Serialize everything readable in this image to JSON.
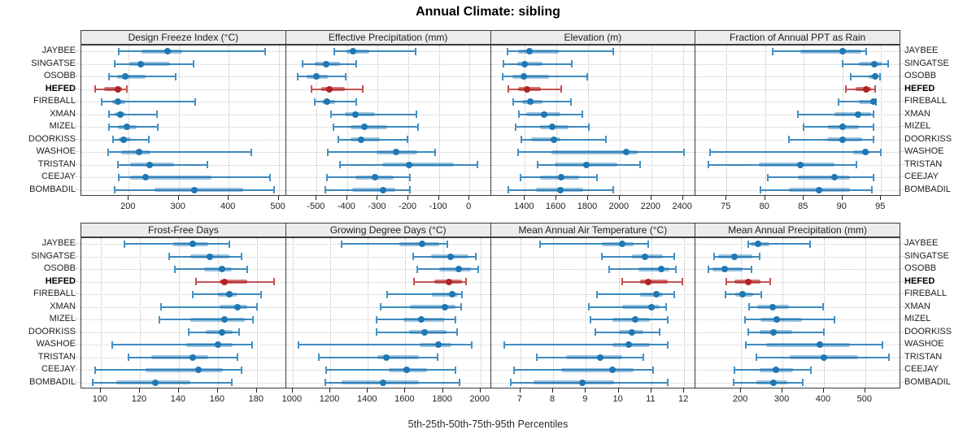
{
  "title": "Annual Climate: sibling",
  "caption": "5th-25th-50th-75th-95th Percentiles",
  "stations": [
    "JAYBEE",
    "SINGATSE",
    "OSOBB",
    "HEFED",
    "FIREBALL",
    "XMAN",
    "MIZEL",
    "DOORKISS",
    "WASHOE",
    "TRISTAN",
    "CEEJAY",
    "BOMBADIL"
  ],
  "highlight_station": "HEFED",
  "colors": {
    "series": "#1f77b4",
    "series_line": "#4292c6",
    "highlight": "#b22222",
    "highlight_line": "#c4524e",
    "panel_header_bg": "#ececec",
    "panel_border": "#3c3c3c",
    "grid": "#c9c9c9"
  },
  "chart_data": {
    "type": "dotplot-percentiles",
    "percentile_levels": [
      5,
      25,
      50,
      75,
      95
    ],
    "legend_note": "values per station are [p5, p25, p50, p75, p95]",
    "panels": [
      {
        "title": "Design Freeze Index (°C)",
        "grid_row": 1,
        "xlim": [
          105,
          515
        ],
        "ticks": [
          200,
          300,
          400,
          500
        ],
        "values": [
          [
            180,
            226,
            278,
            307,
            473
          ],
          [
            172,
            201,
            224,
            283,
            330
          ],
          [
            161,
            177,
            193,
            234,
            294
          ],
          [
            132,
            150,
            178,
            186,
            196
          ],
          [
            146,
            167,
            179,
            193,
            333
          ],
          [
            161,
            171,
            183,
            193,
            257
          ],
          [
            161,
            179,
            197,
            215,
            258
          ],
          [
            169,
            180,
            189,
            205,
            240
          ],
          [
            159,
            185,
            221,
            244,
            445
          ],
          [
            179,
            203,
            242,
            291,
            358
          ],
          [
            180,
            202,
            234,
            366,
            483
          ],
          [
            172,
            252,
            332,
            429,
            491
          ]
        ]
      },
      {
        "title": "Effective Precipitation (mm)",
        "grid_row": 1,
        "xlim": [
          -600,
          70
        ],
        "ticks": [
          -500,
          -400,
          -300,
          -200,
          -100,
          0
        ],
        "values": [
          [
            -442,
            -402,
            -381,
            -328,
            -177
          ],
          [
            -546,
            -505,
            -468,
            -424,
            -370
          ],
          [
            -563,
            -532,
            -501,
            -464,
            -405
          ],
          [
            -517,
            -486,
            -457,
            -407,
            -350
          ],
          [
            -505,
            -483,
            -466,
            -439,
            -370
          ],
          [
            -452,
            -408,
            -373,
            -310,
            -173
          ],
          [
            -446,
            -389,
            -343,
            -270,
            -167
          ],
          [
            -429,
            -389,
            -355,
            -293,
            -202
          ],
          [
            -464,
            -305,
            -239,
            -170,
            -112
          ],
          [
            -423,
            -284,
            -197,
            -50,
            25
          ],
          [
            -466,
            -373,
            -310,
            -248,
            -194
          ],
          [
            -472,
            -385,
            -282,
            -243,
            -194
          ]
        ]
      },
      {
        "title": "Elevation (m)",
        "grid_row": 1,
        "xlim": [
          1185,
          2480
        ],
        "ticks": [
          1400,
          1600,
          1800,
          2000,
          2200,
          2400
        ],
        "values": [
          [
            1290,
            1357,
            1431,
            1614,
            1957
          ],
          [
            1266,
            1354,
            1400,
            1512,
            1695
          ],
          [
            1260,
            1323,
            1392,
            1554,
            1794
          ],
          [
            1294,
            1357,
            1414,
            1503,
            1631
          ],
          [
            1328,
            1383,
            1434,
            1512,
            1692
          ],
          [
            1363,
            1409,
            1520,
            1623,
            1765
          ],
          [
            1340,
            1495,
            1575,
            1675,
            1803
          ],
          [
            1380,
            1438,
            1585,
            1626,
            1914
          ],
          [
            1358,
            1568,
            2043,
            2112,
            2405
          ],
          [
            1482,
            1589,
            1788,
            1983,
            2128
          ],
          [
            1374,
            1495,
            1631,
            1743,
            1855
          ],
          [
            1294,
            1472,
            1626,
            1768,
            1957
          ]
        ]
      },
      {
        "title": "Fraction of Annual PPT as Rain",
        "grid_row": 1,
        "xlim": [
          71,
          97.5
        ],
        "ticks": [
          75,
          80,
          85,
          90,
          95
        ],
        "values": [
          [
            81,
            84.5,
            90,
            92.4,
            93.1
          ],
          [
            90,
            92.1,
            94.1,
            95.1,
            95.9
          ],
          [
            91.1,
            93.4,
            94.2,
            94.6,
            94.9
          ],
          [
            90.4,
            91.7,
            93.1,
            93.7,
            94.2
          ],
          [
            89.5,
            92.1,
            94,
            94.2,
            94.3
          ],
          [
            84.2,
            89,
            92,
            93.7,
            94
          ],
          [
            85,
            88.1,
            90,
            92.1,
            94
          ],
          [
            83.1,
            88,
            90,
            92.6,
            94
          ],
          [
            72.9,
            91.4,
            93,
            93.5,
            95
          ],
          [
            72.7,
            79.2,
            84.6,
            89,
            91.8
          ],
          [
            80.3,
            84.2,
            89,
            91,
            94
          ],
          [
            79.4,
            83.1,
            87,
            91,
            93.8
          ]
        ]
      },
      {
        "title": "Frost-Free Days",
        "grid_row": 2,
        "xlim": [
          90,
          195
        ],
        "ticks": [
          100,
          120,
          140,
          160,
          180
        ],
        "values": [
          [
            112,
            137,
            147,
            155,
            166
          ],
          [
            135,
            146,
            156,
            166,
            172
          ],
          [
            138,
            153,
            162,
            167,
            175
          ],
          [
            149,
            161,
            163.5,
            175,
            189
          ],
          [
            147,
            160,
            166,
            169.5,
            182
          ],
          [
            131,
            161,
            170,
            175,
            180
          ],
          [
            130,
            146,
            163.5,
            174,
            178
          ],
          [
            145,
            154,
            162,
            167.5,
            171
          ],
          [
            106,
            144,
            160,
            167.5,
            177.5
          ],
          [
            114,
            126,
            147,
            155,
            170
          ],
          [
            97,
            123,
            150,
            162.5,
            172
          ],
          [
            96,
            108,
            128,
            146,
            167
          ]
        ]
      },
      {
        "title": "Growing Degree Days (°C)",
        "grid_row": 2,
        "xlim": [
          965,
          2055
        ],
        "ticks": [
          1000,
          1200,
          1400,
          1600,
          1800,
          2000
        ],
        "values": [
          [
            1260,
            1570,
            1690,
            1780,
            1825
          ],
          [
            1640,
            1735,
            1840,
            1935,
            1975
          ],
          [
            1665,
            1780,
            1885,
            1950,
            1990
          ],
          [
            1645,
            1755,
            1830,
            1900,
            1925
          ],
          [
            1505,
            1740,
            1850,
            1880,
            1900
          ],
          [
            1470,
            1625,
            1810,
            1865,
            1895
          ],
          [
            1445,
            1590,
            1685,
            1805,
            1865
          ],
          [
            1445,
            1620,
            1700,
            1820,
            1875
          ],
          [
            1030,
            1675,
            1775,
            1845,
            1955
          ],
          [
            1140,
            1450,
            1500,
            1673,
            1770
          ],
          [
            1180,
            1513,
            1607,
            1716,
            1867
          ],
          [
            1175,
            1262,
            1480,
            1673,
            1890
          ]
        ]
      },
      {
        "title": "Mean Annual Air Temperature (°C)",
        "grid_row": 2,
        "xlim": [
          6.1,
          12.35
        ],
        "ticks": [
          7,
          8,
          9,
          10,
          11,
          12
        ],
        "values": [
          [
            7.6,
            9.5,
            10.1,
            10.45,
            10.9
          ],
          [
            9.5,
            10.4,
            10.8,
            11.35,
            11.7
          ],
          [
            9.7,
            10.6,
            11.3,
            11.55,
            11.75
          ],
          [
            10.1,
            10.65,
            10.9,
            11.5,
            11.95
          ],
          [
            9.35,
            10.65,
            11.15,
            11.35,
            11.7
          ],
          [
            9.1,
            10.1,
            11,
            11.25,
            11.45
          ],
          [
            9.15,
            9.8,
            10.5,
            10.95,
            11.5
          ],
          [
            9.3,
            10,
            10.4,
            10.75,
            11.25
          ],
          [
            6.5,
            9.8,
            10.3,
            10.95,
            11.5
          ],
          [
            7.5,
            8.4,
            9.45,
            10.1,
            10.75
          ],
          [
            6.8,
            8.25,
            9.8,
            10.45,
            11.05
          ],
          [
            6.7,
            7.4,
            8.9,
            9.85,
            11.5
          ]
        ]
      },
      {
        "title": "Mean Annual Precipitation (mm)",
        "grid_row": 2,
        "xlim": [
          90,
          585
        ],
        "ticks": [
          200,
          300,
          400,
          500
        ],
        "values": [
          [
            218,
            224,
            241,
            269,
            366
          ],
          [
            134,
            145,
            183,
            228,
            244
          ],
          [
            121,
            130,
            160,
            203,
            226
          ],
          [
            165,
            183,
            218,
            246,
            271
          ],
          [
            163,
            185,
            203,
            229,
            248
          ],
          [
            220,
            238,
            277,
            315,
            398
          ],
          [
            209,
            246,
            287,
            348,
            425
          ],
          [
            218,
            244,
            279,
            323,
            401
          ],
          [
            211,
            260,
            390,
            464,
            542
          ],
          [
            236,
            317,
            401,
            482,
            557
          ],
          [
            183,
            244,
            284,
            326,
            368
          ],
          [
            181,
            236,
            279,
            312,
            350
          ]
        ]
      }
    ]
  }
}
